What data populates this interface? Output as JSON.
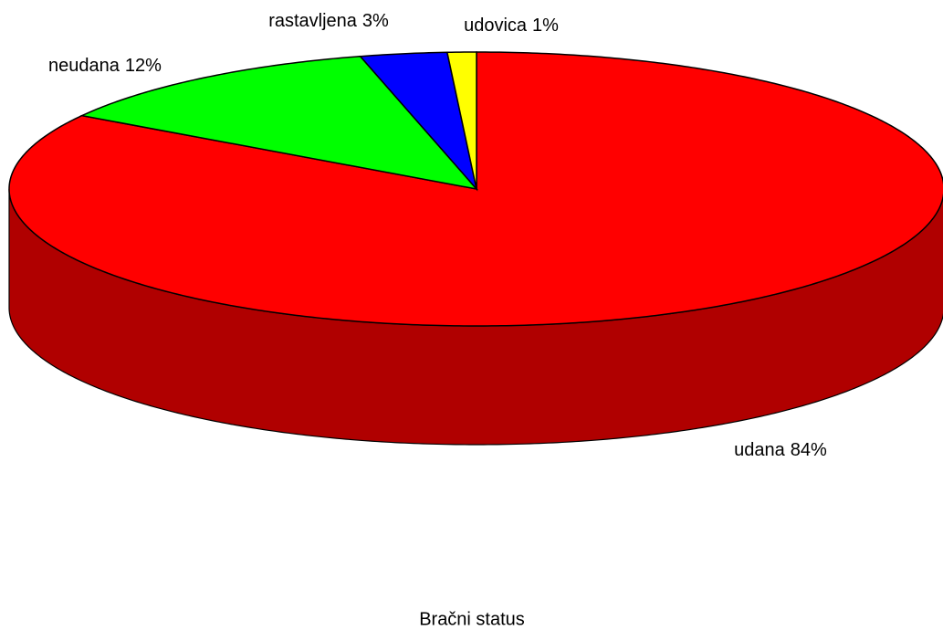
{
  "chart_data": {
    "type": "pie3d",
    "title": "Bračni status",
    "categories": [
      "udana",
      "neudana",
      "rastavljena",
      "udovica"
    ],
    "values": [
      84,
      12,
      3,
      1
    ],
    "value_labels": [
      "84%",
      "12%",
      "3%",
      "1%"
    ],
    "colors": [
      "#ff0000",
      "#00ff00",
      "#0000ff",
      "#ffff00"
    ]
  }
}
